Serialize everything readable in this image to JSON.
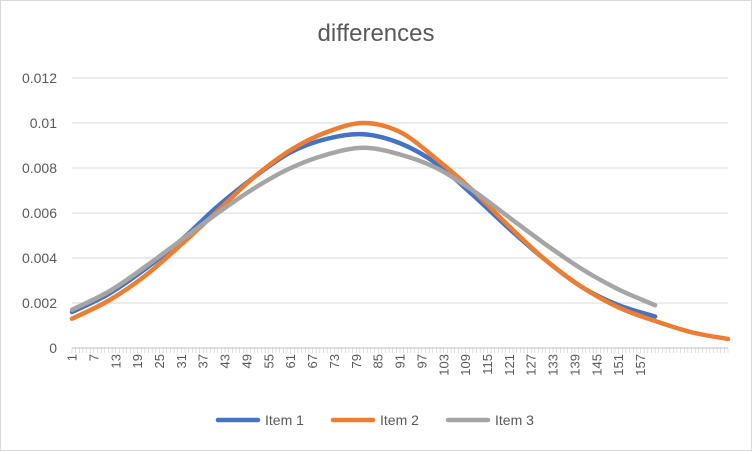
{
  "chart_data": {
    "type": "line",
    "title": "differences",
    "xlabel": "",
    "ylabel": "",
    "ylim": [
      0,
      0.012
    ],
    "yticks": [
      "0",
      "0.002",
      "0.004",
      "0.006",
      "0.008",
      "0.01",
      "0.012"
    ],
    "yticks_values": [
      0,
      0.002,
      0.004,
      0.006,
      0.008,
      0.01,
      0.012
    ],
    "x_range": [
      1,
      181
    ],
    "xtick_labels": [
      "1",
      "7",
      "13",
      "19",
      "25",
      "31",
      "37",
      "43",
      "49",
      "55",
      "61",
      "67",
      "73",
      "79",
      "85",
      "91",
      "97",
      "103",
      "109",
      "115",
      "121",
      "127",
      "133",
      "139",
      "145",
      "151",
      "157"
    ],
    "grid": true,
    "legend_position": "bottom",
    "series": [
      {
        "name": "Item 1",
        "color": "#4472C4",
        "x": [
          1,
          11,
          21,
          31,
          41,
          51,
          61,
          71,
          81,
          91,
          101,
          111,
          121,
          131,
          141,
          151,
          161
        ],
        "values": [
          0.0016,
          0.0024,
          0.0035,
          0.0048,
          0.0063,
          0.0076,
          0.0087,
          0.0093,
          0.0095,
          0.0091,
          0.0082,
          0.0068,
          0.0053,
          0.0039,
          0.0027,
          0.0019,
          0.0014
        ]
      },
      {
        "name": "Item 2",
        "color": "#ED7D31",
        "x": [
          1,
          11,
          21,
          31,
          41,
          51,
          61,
          71,
          81,
          91,
          101,
          111,
          121,
          131,
          141,
          151,
          161,
          171,
          181
        ],
        "values": [
          0.0013,
          0.0021,
          0.0032,
          0.0046,
          0.0061,
          0.0076,
          0.0088,
          0.0096,
          0.01,
          0.0096,
          0.0084,
          0.007,
          0.0054,
          0.0039,
          0.0027,
          0.0018,
          0.0012,
          0.0007,
          0.0004
        ]
      },
      {
        "name": "Item 3",
        "color": "#A5A5A5",
        "x": [
          1,
          11,
          21,
          31,
          41,
          51,
          61,
          71,
          81,
          91,
          101,
          111,
          121,
          131,
          141,
          151,
          161
        ],
        "values": [
          0.0017,
          0.0025,
          0.0036,
          0.0048,
          0.006,
          0.0071,
          0.008,
          0.0086,
          0.0089,
          0.0086,
          0.008,
          0.007,
          0.0058,
          0.0046,
          0.0035,
          0.0026,
          0.0019
        ]
      }
    ]
  }
}
